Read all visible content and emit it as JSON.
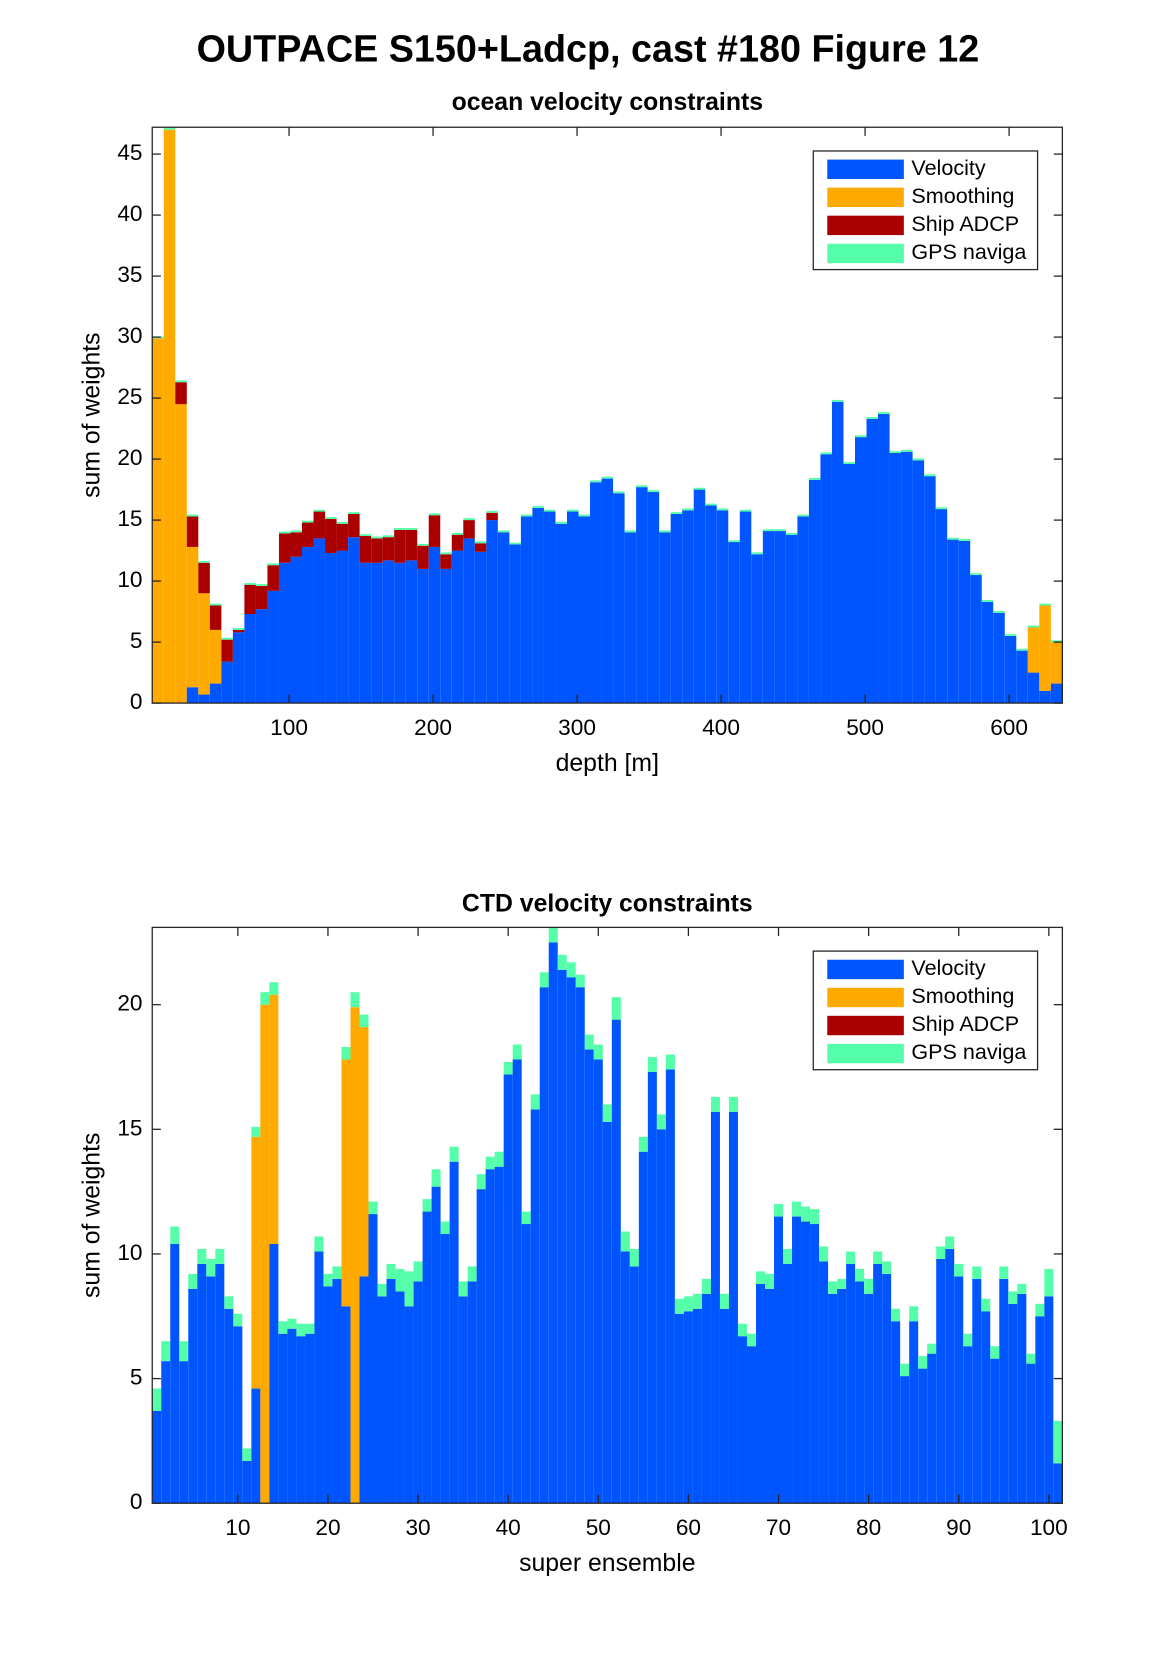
{
  "title": "OUTPACE S150+Ladcp, cast #180  Figure 12",
  "chart_data": [
    {
      "type": "stacked_bar",
      "title": "ocean velocity constraints",
      "xlabel": "depth [m]",
      "ylabel": "sum of weights",
      "legend": "upper right",
      "grid": false,
      "xlim": [
        5,
        637
      ],
      "ylim": [
        0,
        47.2
      ],
      "xticks": [
        100,
        200,
        300,
        400,
        500,
        600
      ],
      "yticks": [
        0,
        5,
        10,
        15,
        20,
        25,
        30,
        35,
        40,
        45
      ],
      "x": [
        9,
        17,
        25,
        33,
        41,
        49,
        57,
        65,
        73,
        81,
        89,
        97,
        105,
        113,
        121,
        129,
        137,
        145,
        153,
        161,
        169,
        177,
        185,
        193,
        201,
        209,
        217,
        225,
        233,
        241,
        249,
        257,
        265,
        273,
        281,
        289,
        297,
        305,
        313,
        321,
        329,
        337,
        345,
        353,
        361,
        369,
        377,
        385,
        393,
        401,
        409,
        417,
        425,
        433,
        441,
        449,
        457,
        465,
        473,
        481,
        489,
        497,
        505,
        513,
        521,
        529,
        537,
        545,
        553,
        561,
        569,
        577,
        585,
        593,
        601,
        609,
        617,
        625,
        633
      ],
      "series": [
        {
          "name": "Velocity",
          "color": "#0055ff",
          "values": [
            0,
            0,
            0,
            1.3,
            0.7,
            1.6,
            3.4,
            5.8,
            7.3,
            7.7,
            9.2,
            11.5,
            12,
            12.8,
            13.5,
            12.3,
            12.5,
            13.6,
            11.5,
            11.5,
            11.7,
            11.5,
            11.7,
            11,
            12.8,
            11,
            12.5,
            13.5,
            12.4,
            15,
            14,
            13,
            15.3,
            16,
            15.7,
            14.7,
            15.7,
            15.3,
            18.1,
            18.4,
            17.2,
            14,
            17.7,
            17.3,
            14,
            15.5,
            15.8,
            17.5,
            16.2,
            15.8,
            13.2,
            15.7,
            12.2,
            14.1,
            14.1,
            13.8,
            15.3,
            18.3,
            20.4,
            24.7,
            19.6,
            21.8,
            23.3,
            23.7,
            20.5,
            20.6,
            19.9,
            18.6,
            15.9,
            13.4,
            13.3,
            10.5,
            8.3,
            7.4,
            5.5,
            4.3,
            2.5,
            1,
            1.6
          ]
        },
        {
          "name": "Smoothing",
          "color": "#ffaa00",
          "values": [
            29.9,
            47,
            24.5,
            11.5,
            8.3,
            4.4,
            0,
            0,
            0,
            0,
            0,
            0,
            0,
            0,
            0,
            0,
            0,
            0,
            0,
            0,
            0,
            0,
            0,
            0,
            0,
            0,
            0,
            0,
            0,
            0,
            0,
            0,
            0,
            0,
            0,
            0,
            0,
            0,
            0,
            0,
            0,
            0,
            0,
            0,
            0,
            0,
            0,
            0,
            0,
            0,
            0,
            0,
            0,
            0,
            0,
            0,
            0,
            0,
            0,
            0,
            0,
            0,
            0,
            0,
            0,
            0,
            0,
            0,
            0,
            0,
            0,
            0,
            0,
            0,
            0,
            0,
            3.7,
            7,
            3.4
          ]
        },
        {
          "name": "Ship ADCP",
          "color": "#aa0000",
          "values": [
            0,
            0,
            1.8,
            2.5,
            2.5,
            2,
            1.8,
            0.2,
            2.4,
            1.9,
            2.1,
            2.4,
            2,
            2,
            2.2,
            2.8,
            2.2,
            1.9,
            2.2,
            2,
            1.9,
            2.7,
            2.5,
            1.9,
            2.6,
            1.2,
            1.3,
            1.5,
            0.7,
            0.6,
            0,
            0,
            0,
            0,
            0,
            0,
            0,
            0,
            0,
            0,
            0,
            0,
            0,
            0,
            0,
            0,
            0,
            0,
            0,
            0,
            0,
            0,
            0,
            0,
            0,
            0,
            0,
            0,
            0,
            0,
            0,
            0,
            0,
            0,
            0,
            0,
            0,
            0,
            0,
            0,
            0,
            0,
            0,
            0,
            0,
            0,
            0,
            0,
            0
          ]
        },
        {
          "name": "GPS naviga",
          "color": "#55ffaa",
          "values": [
            0.15,
            0.15,
            0.15,
            0.15,
            0.15,
            0.15,
            0.15,
            0.15,
            0.15,
            0.15,
            0.15,
            0.15,
            0.15,
            0.15,
            0.15,
            0.15,
            0.15,
            0.15,
            0.15,
            0.15,
            0.15,
            0.15,
            0.15,
            0.15,
            0.15,
            0.15,
            0.15,
            0.15,
            0.15,
            0.15,
            0.15,
            0.15,
            0.15,
            0.15,
            0.15,
            0.15,
            0.15,
            0.15,
            0.15,
            0.15,
            0.15,
            0.15,
            0.15,
            0.15,
            0.15,
            0.15,
            0.15,
            0.15,
            0.15,
            0.15,
            0.15,
            0.15,
            0.15,
            0.15,
            0.15,
            0.15,
            0.15,
            0.15,
            0.15,
            0.15,
            0.15,
            0.15,
            0.15,
            0.15,
            0.15,
            0.15,
            0.15,
            0.15,
            0.15,
            0.15,
            0.15,
            0.15,
            0.15,
            0.15,
            0.15,
            0.15,
            0.15,
            0.15,
            0.15
          ]
        }
      ]
    },
    {
      "type": "stacked_bar",
      "title": "CTD velocity constraints",
      "xlabel": "super ensemble",
      "ylabel": "sum of weights",
      "legend": "upper right",
      "grid": false,
      "xlim": [
        0.5,
        101.5
      ],
      "ylim": [
        0,
        23.1
      ],
      "xticks": [
        10,
        20,
        30,
        40,
        50,
        60,
        70,
        80,
        90,
        100
      ],
      "yticks": [
        0,
        5,
        10,
        15,
        20
      ],
      "x": [
        1,
        2,
        3,
        4,
        5,
        6,
        7,
        8,
        9,
        10,
        11,
        12,
        13,
        14,
        15,
        16,
        17,
        18,
        19,
        20,
        21,
        22,
        23,
        24,
        25,
        26,
        27,
        28,
        29,
        30,
        31,
        32,
        33,
        34,
        35,
        36,
        37,
        38,
        39,
        40,
        41,
        42,
        43,
        44,
        45,
        46,
        47,
        48,
        49,
        50,
        51,
        52,
        53,
        54,
        55,
        56,
        57,
        58,
        59,
        60,
        61,
        62,
        63,
        64,
        65,
        66,
        67,
        68,
        69,
        70,
        71,
        72,
        73,
        74,
        75,
        76,
        77,
        78,
        79,
        80,
        81,
        82,
        83,
        84,
        85,
        86,
        87,
        88,
        89,
        90,
        91,
        92,
        93,
        94,
        95,
        96,
        97,
        98,
        99,
        100,
        101
      ],
      "series": [
        {
          "name": "Velocity",
          "color": "#0055ff",
          "values": [
            3.7,
            5.7,
            10.4,
            5.7,
            8.6,
            9.6,
            9.1,
            9.6,
            7.8,
            7.1,
            1.7,
            4.6,
            0,
            10.4,
            6.8,
            7,
            6.7,
            6.8,
            10.1,
            8.7,
            9,
            7.9,
            0,
            9.1,
            11.6,
            8.3,
            9,
            8.5,
            7.9,
            8.9,
            11.7,
            12.7,
            10.8,
            13.7,
            8.3,
            8.9,
            12.6,
            13.4,
            13.5,
            17.2,
            17.8,
            11.2,
            15.8,
            20.7,
            22.5,
            21.4,
            21.1,
            20.7,
            18.2,
            17.8,
            15.3,
            19.4,
            10.1,
            9.5,
            14.1,
            17.3,
            15,
            17.4,
            7.6,
            7.7,
            7.8,
            8.4,
            15.7,
            7.8,
            15.7,
            6.7,
            6.3,
            8.8,
            8.6,
            11.5,
            9.6,
            11.5,
            11.3,
            11.2,
            9.7,
            8.4,
            8.6,
            9.6,
            8.9,
            8.4,
            9.6,
            9.2,
            7.3,
            5.1,
            7.3,
            5.4,
            6,
            9.8,
            10.2,
            9.1,
            6.3,
            9,
            7.7,
            5.8,
            9,
            8,
            8.4,
            5.6,
            7.5,
            8.3,
            1.6
          ]
        },
        {
          "name": "Smoothing",
          "color": "#ffaa00",
          "values": [
            0,
            0,
            0,
            0,
            0,
            0,
            0,
            0,
            0,
            0,
            0,
            10.1,
            20,
            10,
            0,
            0,
            0,
            0,
            0,
            0,
            0,
            9.9,
            19.9,
            10,
            0,
            0,
            0,
            0,
            0,
            0,
            0,
            0,
            0,
            0,
            0,
            0,
            0,
            0,
            0,
            0,
            0,
            0,
            0,
            0,
            0,
            0,
            0,
            0,
            0,
            0,
            0,
            0,
            0,
            0,
            0,
            0,
            0,
            0,
            0,
            0,
            0,
            0,
            0,
            0,
            0,
            0,
            0,
            0,
            0,
            0,
            0,
            0,
            0,
            0,
            0,
            0,
            0,
            0,
            0,
            0,
            0,
            0,
            0,
            0,
            0,
            0,
            0,
            0,
            0,
            0,
            0,
            0,
            0,
            0,
            0,
            0,
            0,
            0,
            0,
            0,
            0
          ]
        },
        {
          "name": "Ship ADCP",
          "color": "#aa0000",
          "values": [
            0,
            0,
            0,
            0,
            0,
            0,
            0,
            0,
            0,
            0,
            0,
            0,
            0,
            0,
            0,
            0,
            0,
            0,
            0,
            0,
            0,
            0,
            0,
            0,
            0,
            0,
            0,
            0,
            0,
            0,
            0,
            0,
            0,
            0,
            0,
            0,
            0,
            0,
            0,
            0,
            0,
            0,
            0,
            0,
            0,
            0,
            0,
            0,
            0,
            0,
            0,
            0,
            0,
            0,
            0,
            0,
            0,
            0,
            0,
            0,
            0,
            0,
            0,
            0,
            0,
            0,
            0,
            0,
            0,
            0,
            0,
            0,
            0,
            0,
            0,
            0,
            0,
            0,
            0,
            0,
            0,
            0,
            0,
            0,
            0,
            0,
            0,
            0,
            0,
            0,
            0,
            0,
            0,
            0,
            0,
            0,
            0,
            0,
            0,
            0,
            0
          ]
        },
        {
          "name": "GPS naviga",
          "color": "#55ffaa",
          "values": [
            0.9,
            0.8,
            0.7,
            0.8,
            0.6,
            0.6,
            0.7,
            0.6,
            0.5,
            0.5,
            0.5,
            0.4,
            0.5,
            0.5,
            0.5,
            0.4,
            0.5,
            0.4,
            0.6,
            0.5,
            0.5,
            0.5,
            0.6,
            0.5,
            0.5,
            0.5,
            0.6,
            0.9,
            1.4,
            0.8,
            0.5,
            0.7,
            0.5,
            0.6,
            0.6,
            0.6,
            0.6,
            0.5,
            0.6,
            0.5,
            0.6,
            0.5,
            0.6,
            0.6,
            0.6,
            0.6,
            0.6,
            0.5,
            0.6,
            0.6,
            0.7,
            0.9,
            0.8,
            0.7,
            0.6,
            0.6,
            0.6,
            0.6,
            0.6,
            0.6,
            0.6,
            0.6,
            0.6,
            0.6,
            0.6,
            0.5,
            0.5,
            0.5,
            0.6,
            0.5,
            0.6,
            0.6,
            0.6,
            0.6,
            0.6,
            0.5,
            0.4,
            0.5,
            0.5,
            0.6,
            0.5,
            0.5,
            0.5,
            0.5,
            0.6,
            0.5,
            0.4,
            0.5,
            0.5,
            0.5,
            0.5,
            0.5,
            0.5,
            0.5,
            0.5,
            0.5,
            0.4,
            0.4,
            0.5,
            1.1,
            1.7
          ]
        }
      ]
    }
  ]
}
